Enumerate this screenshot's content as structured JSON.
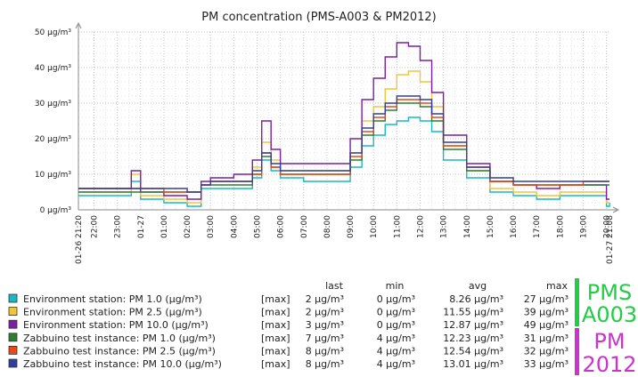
{
  "chart_data": {
    "type": "line",
    "title": "PM concentration (PMS-A003 & PM2012)",
    "xlabel": "",
    "ylabel": "",
    "ylim": [
      0,
      50
    ],
    "y_ticks": [
      "0 µg/m³",
      "10 µg/m³",
      "20 µg/m³",
      "30 µg/m³",
      "40 µg/m³",
      "50 µg/m³"
    ],
    "y_tick_values": [
      0,
      10,
      20,
      30,
      40,
      50
    ],
    "x_hour_start": 21.33,
    "x_hour_end": 44.13,
    "x_ticks": [
      {
        "label": "01-26 21:20",
        "hour": 21.33,
        "red": true
      },
      {
        "label": "22:00",
        "hour": 22
      },
      {
        "label": "23:00",
        "hour": 23
      },
      {
        "label": "01-27",
        "hour": 24,
        "red": true
      },
      {
        "label": "01:00",
        "hour": 25
      },
      {
        "label": "02:00",
        "hour": 26
      },
      {
        "label": "03:00",
        "hour": 27
      },
      {
        "label": "04:00",
        "hour": 28
      },
      {
        "label": "05:00",
        "hour": 29
      },
      {
        "label": "06:00",
        "hour": 30
      },
      {
        "label": "07:00",
        "hour": 31
      },
      {
        "label": "08:00",
        "hour": 32
      },
      {
        "label": "09:00",
        "hour": 33
      },
      {
        "label": "10:00",
        "hour": 34
      },
      {
        "label": "11:00",
        "hour": 35
      },
      {
        "label": "12:00",
        "hour": 36
      },
      {
        "label": "13:00",
        "hour": 37
      },
      {
        "label": "14:00",
        "hour": 38
      },
      {
        "label": "15:00",
        "hour": 39
      },
      {
        "label": "16:00",
        "hour": 40
      },
      {
        "label": "17:00",
        "hour": 41
      },
      {
        "label": "18:00",
        "hour": 42
      },
      {
        "label": "19:00",
        "hour": 43
      },
      {
        "label": "20:00",
        "hour": 44
      },
      {
        "label": "01-27 21:08",
        "hour": 44.13,
        "red": true
      }
    ],
    "grid": true,
    "series": [
      {
        "name": "Environment station: PM 1.0 (µg/m³)",
        "color": "#1ab7c4",
        "agg": "[max]",
        "last": "2 µg/m³",
        "min": "0 µg/m³",
        "avg": "8.26 µg/m³",
        "max": "27 µg/m³",
        "x": [
          21.33,
          22,
          23,
          23.6,
          24,
          25,
          26,
          26.6,
          27,
          28,
          28.8,
          29.2,
          29.6,
          30,
          31,
          32,
          33,
          33.5,
          34,
          34.5,
          35,
          35.5,
          36,
          36.5,
          37,
          38,
          39,
          40,
          41,
          42,
          43,
          43.5,
          44,
          44.13
        ],
        "y": [
          4,
          4,
          4,
          8,
          3,
          2,
          1,
          6,
          6,
          6,
          9,
          14,
          11,
          9,
          8,
          8,
          12,
          18,
          21,
          24,
          25,
          26,
          25,
          22,
          14,
          9,
          5,
          4,
          3,
          4,
          4,
          4,
          1,
          2
        ]
      },
      {
        "name": "Environment station: PM 2.5 (µg/m³)",
        "color": "#f2c438",
        "agg": "[max]",
        "last": "2 µg/m³",
        "min": "0 µg/m³",
        "avg": "11.55 µg/m³",
        "max": "39 µg/m³",
        "x": [
          21.33,
          22,
          23,
          23.6,
          24,
          25,
          26,
          26.6,
          27,
          28,
          28.8,
          29.2,
          29.6,
          30,
          31,
          32,
          33,
          33.5,
          34,
          34.5,
          35,
          35.5,
          36,
          36.5,
          37,
          38,
          39,
          40,
          41,
          42,
          43,
          43.5,
          44,
          44.13
        ],
        "y": [
          5,
          5,
          5,
          10,
          4,
          3,
          2,
          7,
          8,
          8,
          12,
          19,
          14,
          11,
          11,
          11,
          16,
          25,
          29,
          34,
          38,
          39,
          36,
          29,
          18,
          11,
          6,
          5,
          4,
          5,
          5,
          5,
          2,
          2
        ]
      },
      {
        "name": "Environment station: PM 10.0 (µg/m³)",
        "color": "#7b1fa2",
        "agg": "[max]",
        "last": "3 µg/m³",
        "min": "0 µg/m³",
        "avg": "12.87 µg/m³",
        "max": "49 µg/m³",
        "x": [
          21.33,
          22,
          23,
          23.6,
          24,
          25,
          26,
          26.6,
          27,
          28,
          28.8,
          29.2,
          29.6,
          30,
          31,
          32,
          33,
          33.5,
          34,
          34.5,
          35,
          35.5,
          36,
          36.5,
          37,
          38,
          39,
          40,
          41,
          42,
          43,
          43.5,
          44,
          44.13
        ],
        "y": [
          6,
          6,
          6,
          11,
          5,
          4,
          3,
          8,
          9,
          10,
          14,
          25,
          17,
          13,
          13,
          13,
          20,
          31,
          37,
          43,
          47,
          46,
          42,
          33,
          21,
          13,
          8,
          7,
          6,
          7,
          7,
          7,
          3,
          3
        ]
      },
      {
        "name": "Zabbuino test instance: PM 1.0 (µg/m³)",
        "color": "#2e7d32",
        "agg": "[max]",
        "last": "7 µg/m³",
        "min": "4 µg/m³",
        "avg": "12.23 µg/m³",
        "max": "31 µg/m³",
        "x": [
          21.33,
          22,
          23,
          24,
          25,
          26,
          26.6,
          27,
          28,
          28.8,
          29.2,
          29.6,
          30,
          31,
          32,
          33,
          33.5,
          34,
          34.5,
          35,
          35.5,
          36,
          36.5,
          37,
          38,
          39,
          40,
          41,
          42,
          43,
          44,
          44.13
        ],
        "y": [
          5,
          5,
          5,
          5,
          5,
          5,
          7,
          7,
          7,
          10,
          15,
          12,
          10,
          10,
          10,
          14,
          21,
          25,
          28,
          30,
          30,
          29,
          25,
          17,
          11,
          8,
          7,
          7,
          7,
          7,
          7,
          7
        ]
      },
      {
        "name": "Zabbuino test instance: PM 2.5 (µg/m³)",
        "color": "#e64a19",
        "agg": "[max]",
        "last": "8 µg/m³",
        "min": "4 µg/m³",
        "avg": "12.54 µg/m³",
        "max": "32 µg/m³",
        "x": [
          21.33,
          22,
          23,
          24,
          25,
          26,
          26.6,
          27,
          28,
          28.8,
          29.2,
          29.6,
          30,
          31,
          32,
          33,
          33.5,
          34,
          34.5,
          35,
          35.5,
          36,
          36.5,
          37,
          38,
          39,
          40,
          41,
          42,
          43,
          44,
          44.13
        ],
        "y": [
          6,
          6,
          6,
          6,
          5,
          5,
          7,
          8,
          8,
          10,
          16,
          12,
          10,
          10,
          10,
          15,
          22,
          26,
          29,
          31,
          31,
          30,
          26,
          18,
          12,
          8,
          7,
          7,
          7,
          8,
          8,
          8
        ]
      },
      {
        "name": "Zabbuino test instance: PM 10.0 (µg/m³)",
        "color": "#303f9f",
        "agg": "[max]",
        "last": "8 µg/m³",
        "min": "4 µg/m³",
        "avg": "13.01 µg/m³",
        "max": "33 µg/m³",
        "x": [
          21.33,
          22,
          23,
          24,
          25,
          26,
          26.6,
          27,
          28,
          28.8,
          29.2,
          29.6,
          30,
          31,
          32,
          33,
          33.5,
          34,
          34.5,
          35,
          35.5,
          36,
          36.5,
          37,
          38,
          39,
          40,
          41,
          42,
          43,
          44,
          44.13
        ],
        "y": [
          6,
          6,
          6,
          6,
          6,
          5,
          7,
          8,
          8,
          11,
          16,
          13,
          11,
          11,
          11,
          16,
          23,
          27,
          30,
          32,
          32,
          31,
          27,
          19,
          12,
          9,
          8,
          8,
          8,
          8,
          8,
          8
        ]
      }
    ],
    "legend_headers": {
      "last": "last",
      "min": "min",
      "avg": "avg",
      "max": "max"
    }
  },
  "brand": {
    "line1a": "PMS",
    "line1b": "A003",
    "color1": "#22cc44",
    "line2a": "PM",
    "line2b": "2012",
    "color2": "#cc33cc"
  }
}
